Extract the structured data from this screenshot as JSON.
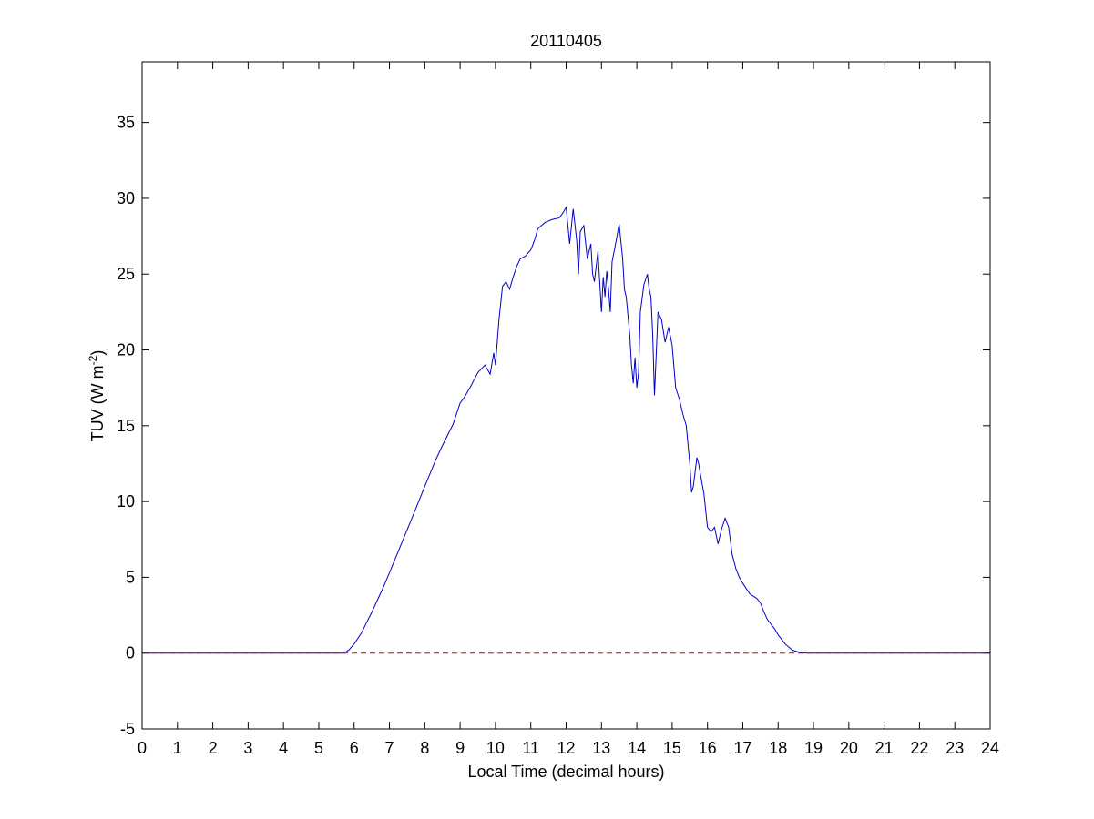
{
  "chart_data": {
    "type": "line",
    "title": "20110405",
    "xlabel": "Local Time (decimal hours)",
    "ylabel": {
      "main": "TUV (W m",
      "superscript": "-2",
      "close": ")"
    },
    "xlim": [
      0,
      24
    ],
    "ylim": [
      -5,
      39
    ],
    "xticks": [
      0,
      1,
      2,
      3,
      4,
      5,
      6,
      7,
      8,
      9,
      10,
      11,
      12,
      13,
      14,
      15,
      16,
      17,
      18,
      19,
      20,
      21,
      22,
      23,
      24
    ],
    "yticks": [
      -5,
      0,
      5,
      10,
      15,
      20,
      25,
      30,
      35
    ],
    "grid": false,
    "series": [
      {
        "color": "#0000cc",
        "style": "solid",
        "x": [
          0,
          5.7,
          5.85,
          6.0,
          6.2,
          6.5,
          6.8,
          7.0,
          7.3,
          7.6,
          8.0,
          8.3,
          8.5,
          8.8,
          9.0,
          9.1,
          9.3,
          9.5,
          9.7,
          9.75,
          9.85,
          9.95,
          10.0,
          10.1,
          10.2,
          10.3,
          10.4,
          10.5,
          10.6,
          10.7,
          10.85,
          11.0,
          11.1,
          11.2,
          11.4,
          11.6,
          11.8,
          11.9,
          12.0,
          12.05,
          12.1,
          12.2,
          12.3,
          12.35,
          12.4,
          12.5,
          12.6,
          12.7,
          12.75,
          12.8,
          12.9,
          13.0,
          13.05,
          13.1,
          13.15,
          13.2,
          13.25,
          13.3,
          13.4,
          13.5,
          13.6,
          13.65,
          13.7,
          13.8,
          13.85,
          13.9,
          13.95,
          14.0,
          14.05,
          14.1,
          14.2,
          14.3,
          14.35,
          14.4,
          14.45,
          14.5,
          14.6,
          14.7,
          14.8,
          14.9,
          15.0,
          15.1,
          15.2,
          15.3,
          15.4,
          15.5,
          15.55,
          15.6,
          15.7,
          15.75,
          15.8,
          15.9,
          16.0,
          16.1,
          16.2,
          16.3,
          16.4,
          16.5,
          16.6,
          16.7,
          16.8,
          16.9,
          17.0,
          17.2,
          17.4,
          17.5,
          17.6,
          17.7,
          17.8,
          17.9,
          18.0,
          18.2,
          18.4,
          18.6,
          18.8,
          19.0,
          24
        ],
        "y": [
          0,
          0,
          0.2,
          0.6,
          1.3,
          2.7,
          4.2,
          5.3,
          7.0,
          8.7,
          11.0,
          12.7,
          13.7,
          15.1,
          16.5,
          16.8,
          17.6,
          18.5,
          19.0,
          18.8,
          18.4,
          19.8,
          19.0,
          22.0,
          24.2,
          24.5,
          24.0,
          24.8,
          25.5,
          26.0,
          26.2,
          26.6,
          27.2,
          28.0,
          28.4,
          28.6,
          28.7,
          29.0,
          29.4,
          28.2,
          27.0,
          29.3,
          27.2,
          25.0,
          27.8,
          28.2,
          26.0,
          27.0,
          25.0,
          24.5,
          26.5,
          22.5,
          24.8,
          23.5,
          25.2,
          24.0,
          22.5,
          25.8,
          27.0,
          28.3,
          26.0,
          24.0,
          23.5,
          21.0,
          19.0,
          17.8,
          19.5,
          17.5,
          18.5,
          22.5,
          24.3,
          25.0,
          24.0,
          23.5,
          21.0,
          17.0,
          22.5,
          22.0,
          20.5,
          21.5,
          20.3,
          17.5,
          16.8,
          15.8,
          15.0,
          12.5,
          10.6,
          11.0,
          12.9,
          12.5,
          11.8,
          10.5,
          8.3,
          8.0,
          8.3,
          7.2,
          8.2,
          8.9,
          8.3,
          6.5,
          5.6,
          5.0,
          4.6,
          3.9,
          3.6,
          3.3,
          2.7,
          2.2,
          1.9,
          1.6,
          1.2,
          0.6,
          0.2,
          0.05,
          0,
          0,
          0
        ]
      },
      {
        "color": "#cc0000",
        "style": "dashed",
        "x": [
          0,
          24
        ],
        "y": [
          0,
          0
        ]
      }
    ]
  }
}
